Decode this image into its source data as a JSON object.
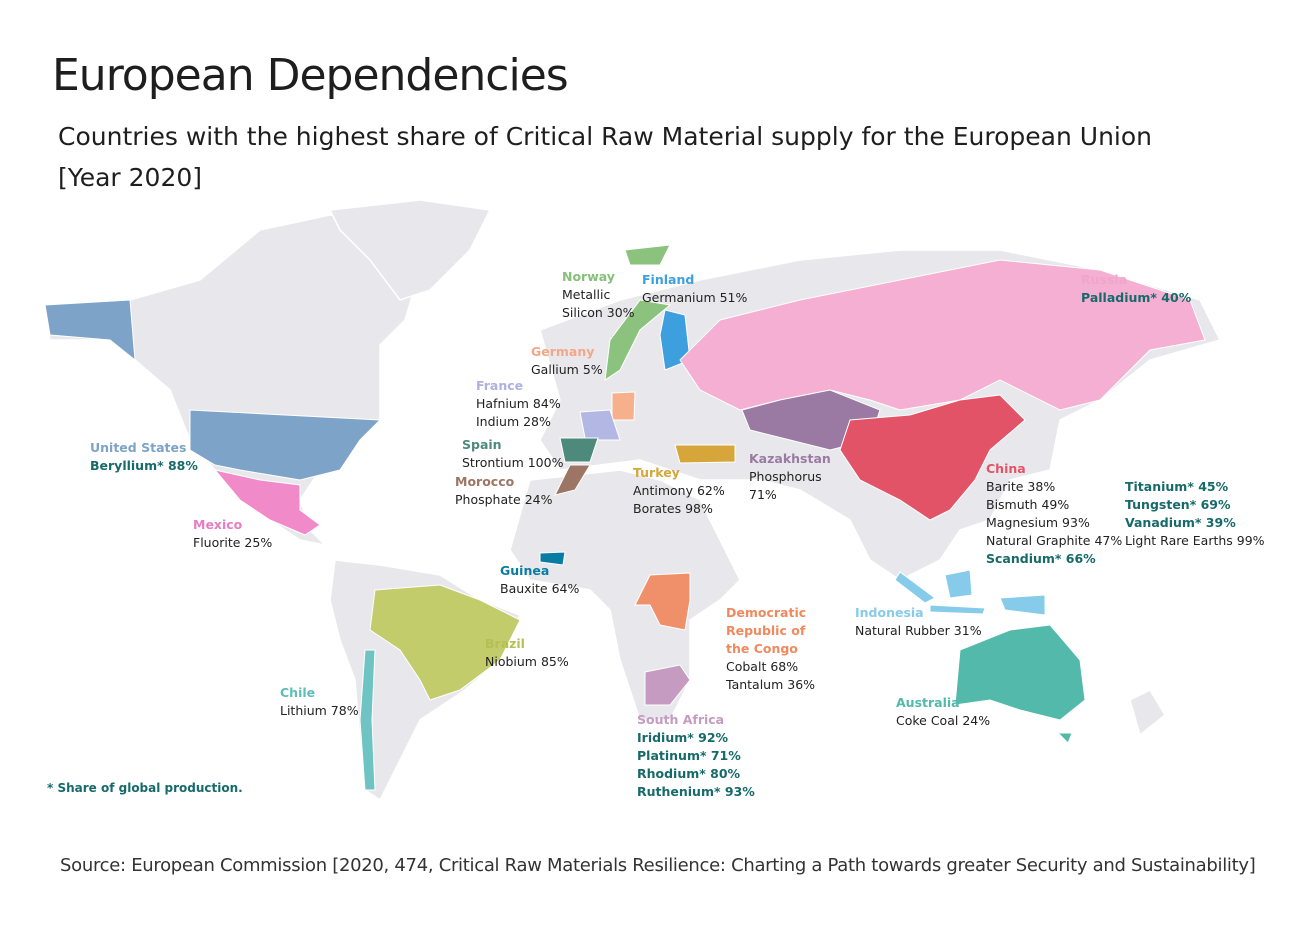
{
  "header": {
    "title": "European Dependencies",
    "subtitle": [
      "Countries with the highest share of Critical Raw Material supply for the European Union",
      "[Year 2020]"
    ]
  },
  "countries": [
    {
      "name": "United States",
      "materials": [
        "Beryllium* 88%"
      ]
    },
    {
      "name": "Mexico",
      "materials": [
        "Fluorite 25%"
      ]
    },
    {
      "name": "Chile",
      "materials": [
        "Lithium 78%"
      ]
    },
    {
      "name": "Brazil",
      "materials": [
        "Niobium 85%"
      ]
    },
    {
      "name": "Guinea",
      "materials": [
        "Bauxite 64%"
      ]
    },
    {
      "name": "Norway",
      "materials": [
        "Metallic Silicon 30%"
      ]
    },
    {
      "name": "Finland",
      "materials": [
        "Germanium 51%"
      ]
    },
    {
      "name": "Germany",
      "materials": [
        "Gallium 5%"
      ]
    },
    {
      "name": "France",
      "materials": [
        "Hafnium 84%",
        "Indium 28%"
      ]
    },
    {
      "name": "Spain",
      "materials": [
        "Strontium 100%"
      ]
    },
    {
      "name": "Morocco",
      "materials": [
        "Phosphate 24%"
      ]
    },
    {
      "name": "Turkey",
      "materials": [
        "Antimony 62%",
        "Borates 98%"
      ]
    },
    {
      "name": "Kazakhstan",
      "materials": [
        "Phosphorus 71%"
      ]
    },
    {
      "name": "Russia",
      "materials": [
        "Palladium* 40%"
      ]
    },
    {
      "name": "China",
      "materials": [
        "Barite 38%",
        "Bismuth 49%",
        "Magnesium 93%",
        "Natural Graphite 47%",
        "Scandium* 66%",
        "Titanium* 45%",
        "Tungsten* 69%",
        "Vanadium* 39%",
        "Light Rare Earths 99%"
      ]
    },
    {
      "name": "Indonesia",
      "materials": [
        "Natural Rubber 31%"
      ]
    },
    {
      "name": "Australia",
      "materials": [
        "Coke Coal 24%"
      ]
    },
    {
      "name": "Democratic Republic of the Congo",
      "materials": [
        "Cobalt 68%",
        "Tantalum 36%"
      ]
    },
    {
      "name": "South Africa",
      "materials": [
        "Iridium* 92%",
        "Platinum* 71%",
        "Rhodium* 80%",
        "Ruthenium* 93%"
      ]
    }
  ],
  "footnote": "* Share of global production.",
  "source": "Source: European Commission [2020, 474, Critical Raw Materials Resilience: Charting a Path towards greater Security and Sustainability]"
}
